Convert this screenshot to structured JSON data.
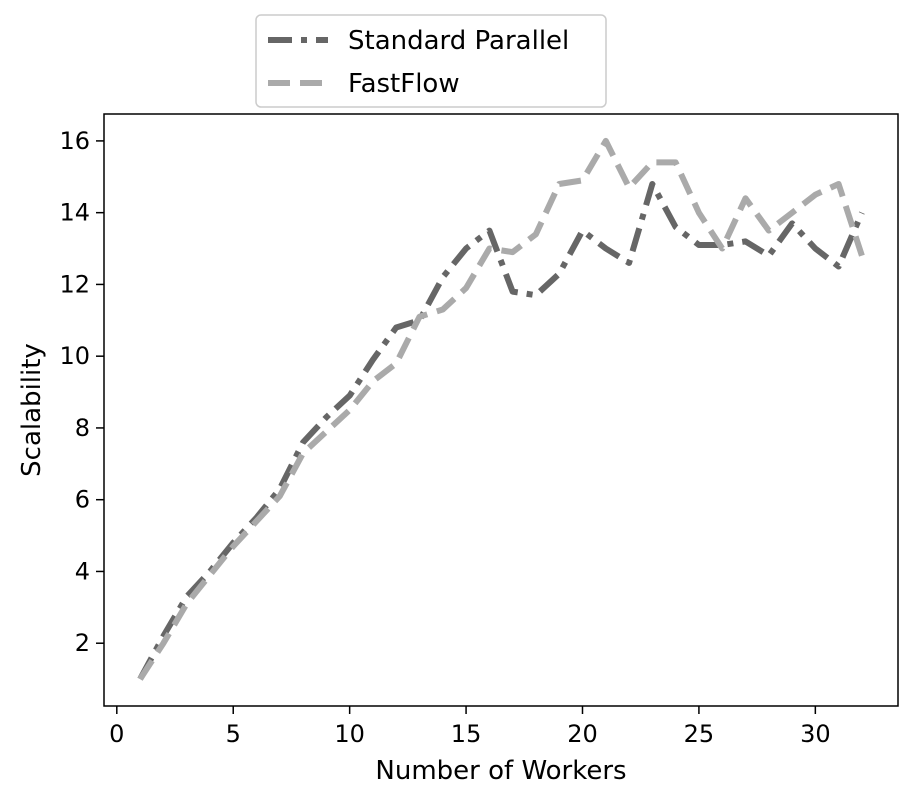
{
  "chart_data": {
    "type": "line",
    "title": "",
    "xlabel": "Number of Workers",
    "ylabel": "Scalability",
    "xlim": [
      -0.55,
      33.55
    ],
    "ylim": [
      0.25,
      16.75
    ],
    "xticks": [
      0,
      5,
      10,
      15,
      20,
      25,
      30
    ],
    "yticks": [
      2,
      4,
      6,
      8,
      10,
      12,
      14,
      16
    ],
    "grid": false,
    "legend_position": "top-left, above plot",
    "x": [
      1,
      2,
      3,
      4,
      5,
      6,
      7,
      8,
      9,
      10,
      11,
      12,
      13,
      14,
      15,
      16,
      17,
      18,
      19,
      20,
      21,
      22,
      23,
      24,
      25,
      26,
      27,
      28,
      29,
      30,
      31,
      32
    ],
    "series": [
      {
        "name": "Standard Parallel",
        "color": "#666666",
        "style": "dashdot",
        "values": [
          1.0,
          2.2,
          3.3,
          4.0,
          4.8,
          5.5,
          6.3,
          7.6,
          8.3,
          8.9,
          9.9,
          10.8,
          11.0,
          12.2,
          13.0,
          13.5,
          11.8,
          11.7,
          12.3,
          13.5,
          13.0,
          12.6,
          14.8,
          13.6,
          13.1,
          13.1,
          13.2,
          12.8,
          13.7,
          13.0,
          12.5,
          14.0
        ]
      },
      {
        "name": "FastFlow",
        "color": "#aaaaaa",
        "style": "dashed",
        "values": [
          1.0,
          2.0,
          3.1,
          3.9,
          4.7,
          5.4,
          6.1,
          7.3,
          7.9,
          8.5,
          9.3,
          9.8,
          11.1,
          11.3,
          11.9,
          13.0,
          12.9,
          13.4,
          14.8,
          14.9,
          16.0,
          14.7,
          15.4,
          15.4,
          14.0,
          13.0,
          14.4,
          13.5,
          14.0,
          14.5,
          14.8,
          12.8
        ]
      }
    ]
  }
}
